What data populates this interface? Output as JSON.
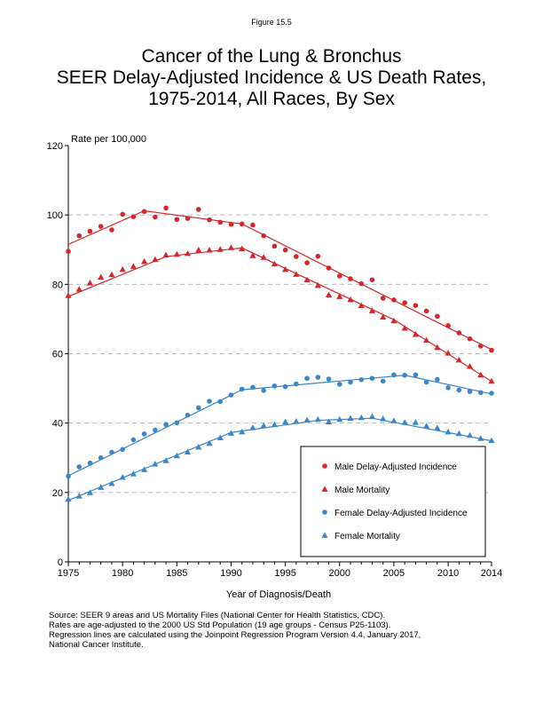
{
  "figure_label": "Figure 15.5",
  "title_lines": [
    "Cancer of the Lung & Bronchus",
    "SEER Delay-Adjusted Incidence & US Death Rates,",
    "1975-2014, All Races, By Sex"
  ],
  "source_lines": [
    "Source: SEER 9 areas and US Mortality Files (National Center for Health Statistics, CDC).",
    "Rates are age-adjusted to the 2000 US Std Population (19 age groups - Census P25-1103).",
    "Regression lines are calculated using the Joinpoint Regression Program Version 4.4, January 2017,",
    "National Cancer Institute."
  ],
  "chart_data": {
    "type": "scatter",
    "title": "",
    "xlabel": "Year of Diagnosis/Death",
    "ylabel": "Rate per 100,000",
    "xlim": [
      1975,
      2014
    ],
    "ylim": [
      0,
      120
    ],
    "x_ticks": [
      1975,
      1980,
      1985,
      1990,
      1995,
      2000,
      2005,
      2010,
      2014
    ],
    "y_ticks": [
      0,
      20,
      40,
      60,
      80,
      100,
      120
    ],
    "grid": "horizontal dashed",
    "legend_position": "bottom-right",
    "x": [
      1975,
      1976,
      1977,
      1978,
      1979,
      1980,
      1981,
      1982,
      1983,
      1984,
      1985,
      1986,
      1987,
      1988,
      1989,
      1990,
      1991,
      1992,
      1993,
      1994,
      1995,
      1996,
      1997,
      1998,
      1999,
      2000,
      2001,
      2002,
      2003,
      2004,
      2005,
      2006,
      2007,
      2008,
      2009,
      2010,
      2011,
      2012,
      2013,
      2014
    ],
    "series": [
      {
        "name": "Male Delay-Adjusted Incidence",
        "color": "#d7262a",
        "marker": "circle",
        "values": [
          89.5,
          94.0,
          95.3,
          96.7,
          95.7,
          100.2,
          99.5,
          101.0,
          99.4,
          102.0,
          98.7,
          99.0,
          101.6,
          98.6,
          97.9,
          97.3,
          97.4,
          97.1,
          94.0,
          91.0,
          89.9,
          88.0,
          86.2,
          88.1,
          84.7,
          82.4,
          81.6,
          80.2,
          81.3,
          76.0,
          75.5,
          74.7,
          73.9,
          72.3,
          70.8,
          68.1,
          66.0,
          64.3,
          62.2,
          61.0
        ],
        "trend_years": [
          1975,
          1982,
          1991,
          2014
        ],
        "trend_values": [
          91.5,
          101.2,
          97.4,
          61.2
        ]
      },
      {
        "name": "Male Mortality",
        "color": "#d7262a",
        "marker": "triangle",
        "values": [
          76.8,
          78.6,
          80.4,
          82.1,
          82.8,
          84.3,
          85.2,
          86.6,
          87.2,
          88.5,
          88.7,
          88.9,
          89.9,
          89.9,
          90.1,
          90.6,
          90.3,
          88.3,
          87.8,
          85.9,
          84.3,
          82.9,
          81.3,
          79.7,
          77.0,
          76.5,
          75.6,
          73.9,
          72.4,
          70.6,
          69.5,
          67.4,
          65.6,
          63.9,
          61.8,
          60.2,
          58.2,
          56.4,
          53.9,
          52.1
        ],
        "trend_years": [
          1975,
          1984,
          1991,
          2005,
          2014
        ],
        "trend_values": [
          76.5,
          88.0,
          90.5,
          69.8,
          52.0
        ]
      },
      {
        "name": "Female Delay-Adjusted Incidence",
        "color": "#3a86c8",
        "marker": "circle",
        "values": [
          24.7,
          27.4,
          28.5,
          30.0,
          31.6,
          32.4,
          35.2,
          36.9,
          38.0,
          39.6,
          40.1,
          42.3,
          44.4,
          46.3,
          46.2,
          48.1,
          49.8,
          50.3,
          49.4,
          50.7,
          50.5,
          51.3,
          52.9,
          53.2,
          52.7,
          51.2,
          51.8,
          52.5,
          52.9,
          52.1,
          53.9,
          53.8,
          53.9,
          51.8,
          52.6,
          50.2,
          49.5,
          49.1,
          48.8,
          48.6
        ],
        "trend_years": [
          1975,
          1991,
          2006,
          2014
        ],
        "trend_values": [
          24.8,
          49.6,
          53.8,
          48.4
        ]
      },
      {
        "name": "Female Mortality",
        "color": "#3a86c8",
        "marker": "triangle",
        "values": [
          18.1,
          19.0,
          20.0,
          21.5,
          22.6,
          24.4,
          25.4,
          26.6,
          28.2,
          29.2,
          30.6,
          31.7,
          33.1,
          34.2,
          35.8,
          37.1,
          37.5,
          38.7,
          39.3,
          39.6,
          40.4,
          40.5,
          40.9,
          41.1,
          40.4,
          41.1,
          41.4,
          41.6,
          41.9,
          41.3,
          40.7,
          40.2,
          40.2,
          39.2,
          38.6,
          37.5,
          37.0,
          36.5,
          35.6,
          35.0
        ],
        "trend_years": [
          1975,
          1990,
          1998,
          2003,
          2014
        ],
        "trend_values": [
          17.7,
          37.3,
          40.8,
          41.4,
          34.9
        ]
      }
    ]
  }
}
